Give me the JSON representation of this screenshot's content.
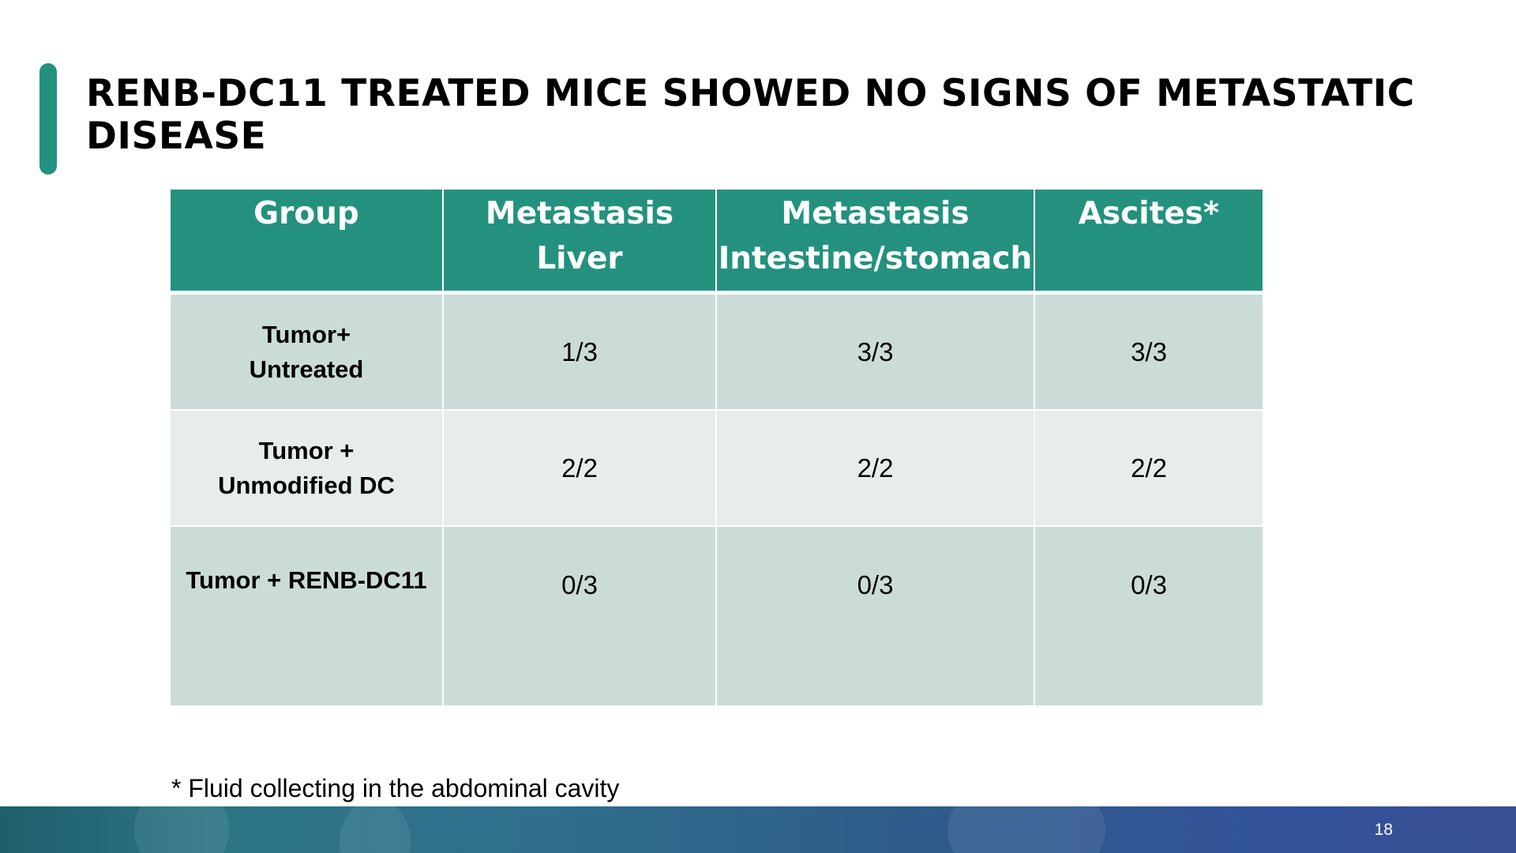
{
  "slide": {
    "title": "RENB-DC11 TREATED MICE SHOWED NO SIGNS OF METASTATIC DISEASE",
    "footnote": "* Fluid collecting in the abdominal cavity",
    "page_number": "18"
  },
  "table": {
    "headers": {
      "group": "Group",
      "liver_line1": "Metastasis",
      "liver_line2": "Liver",
      "intestine_line1": "Metastasis",
      "intestine_line2": "Intestine/stomach",
      "ascites": "Ascites*"
    },
    "rows": [
      {
        "group_line1": "Tumor+",
        "group_line2": "Untreated",
        "liver": "1/3",
        "intestine": "3/3",
        "ascites": "3/3"
      },
      {
        "group_line1": "Tumor +",
        "group_line2": "Unmodified DC",
        "liver": "2/2",
        "intestine": "2/2",
        "ascites": "2/2"
      },
      {
        "group_line1": "Tumor + RENB-DC11",
        "liver": "0/3",
        "intestine": "0/3",
        "ascites": "0/3"
      }
    ]
  },
  "colors": {
    "accent": "#24917f",
    "header_bg": "#24917f",
    "row_dark": "#cbdcd8",
    "row_light": "#e6edeb",
    "footer_band_start": "#1e5f6b",
    "footer_band_end": "#3a4f93"
  }
}
